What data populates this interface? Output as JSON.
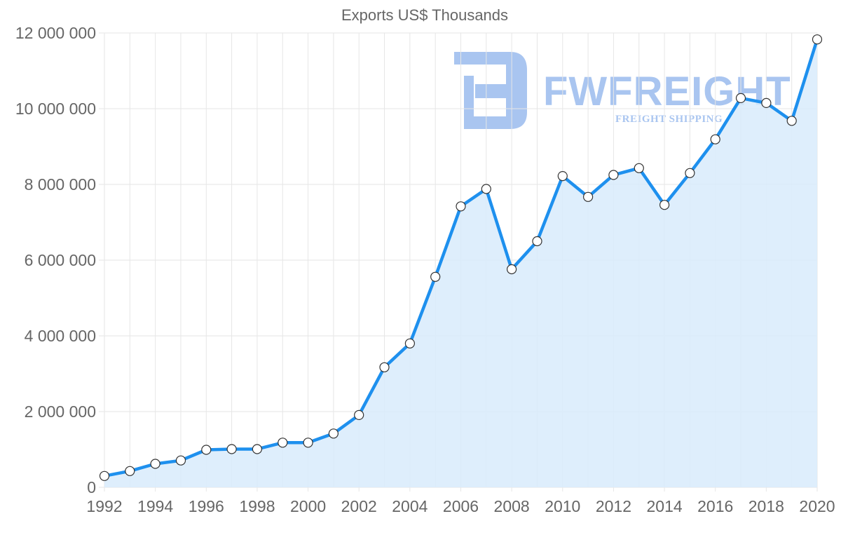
{
  "chart_data": {
    "type": "area",
    "title": "Exports US$ Thousands",
    "xlabel": "",
    "ylabel": "",
    "x": [
      1992,
      1993,
      1994,
      1995,
      1996,
      1997,
      1998,
      1999,
      2000,
      2001,
      2002,
      2003,
      2004,
      2005,
      2006,
      2007,
      2008,
      2009,
      2010,
      2011,
      2012,
      2013,
      2014,
      2015,
      2016,
      2017,
      2018,
      2019,
      2020
    ],
    "series": [
      {
        "name": "Exports US$ Thousands",
        "values": [
          300000,
          430000,
          620000,
          710000,
          990000,
          1010000,
          1010000,
          1180000,
          1180000,
          1420000,
          1910000,
          3170000,
          3800000,
          5560000,
          7420000,
          7880000,
          5760000,
          6500000,
          8220000,
          7670000,
          8250000,
          8430000,
          7460000,
          8300000,
          9190000,
          10280000,
          10150000,
          9680000,
          11830000
        ],
        "color": "#1e90ee",
        "fill": "#d8ebfb"
      }
    ],
    "xlim": [
      1992,
      2020
    ],
    "ylim": [
      0,
      12000000
    ],
    "x_ticks": [
      "1992",
      "1994",
      "1996",
      "1998",
      "2000",
      "2002",
      "2004",
      "2006",
      "2008",
      "2010",
      "2012",
      "2014",
      "2016",
      "2018",
      "2020"
    ],
    "y_ticks": [
      "0",
      "2 000 000",
      "4 000 000",
      "6 000 000",
      "8 000 000",
      "10 000 000",
      "12 000 000"
    ],
    "grid": true,
    "legend": "none"
  },
  "watermark": {
    "brand": "FWFREIGHT",
    "tagline": "FREIGHT SHIPPING",
    "color": "#a9c5f0"
  }
}
